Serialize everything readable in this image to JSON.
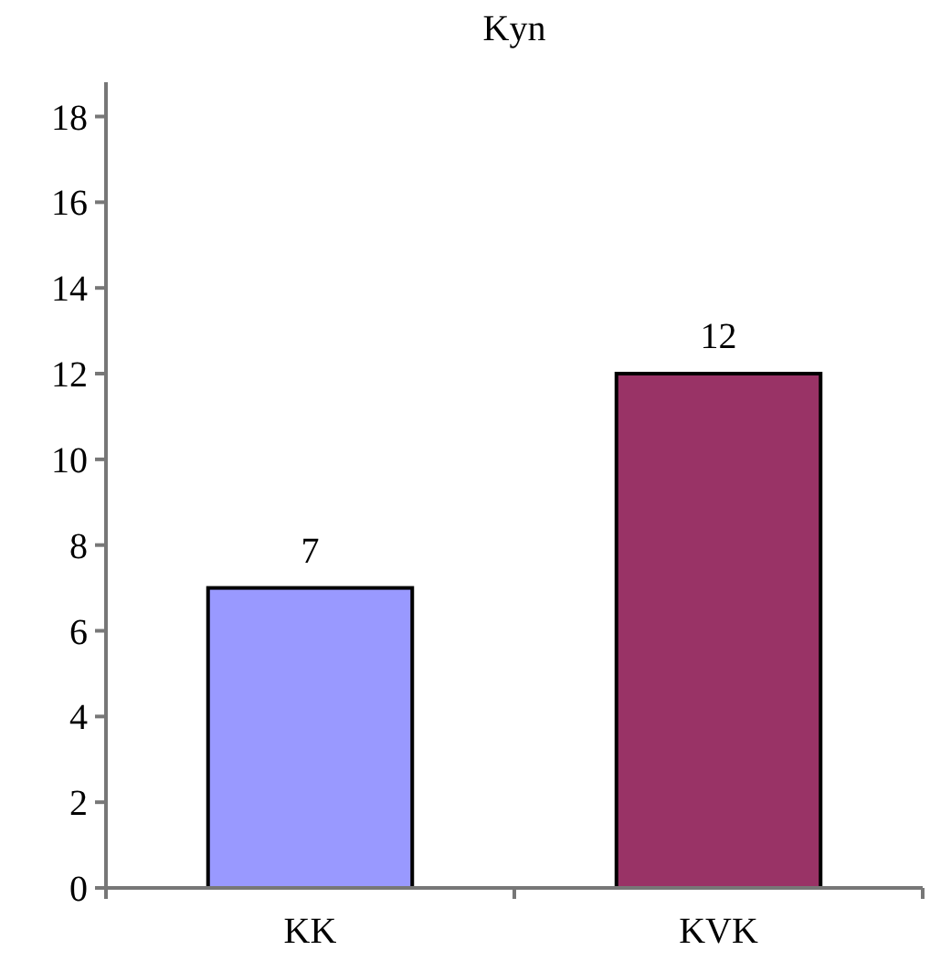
{
  "chart_data": {
    "type": "bar",
    "title": "Kyn",
    "categories": [
      "KK",
      "KVK"
    ],
    "values": [
      7,
      12
    ],
    "colors": [
      "#9999ff",
      "#993366"
    ],
    "ylim": [
      0,
      18.8
    ],
    "yticks": [
      0,
      2,
      4,
      6,
      8,
      10,
      12,
      14,
      16,
      18
    ],
    "data_labels": true
  }
}
